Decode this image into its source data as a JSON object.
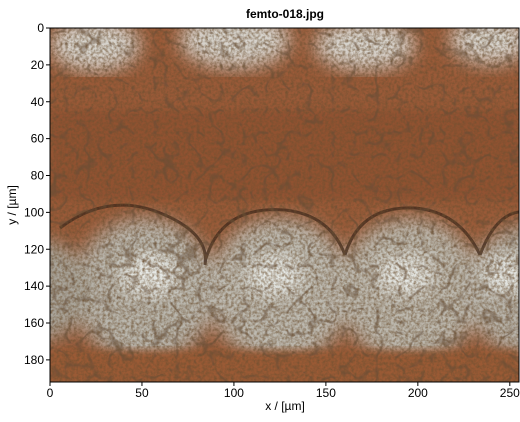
{
  "chart_data": {
    "type": "image",
    "title": "femto-018.jpg",
    "xlabel": "x / [µm]",
    "ylabel": "y / [µm]",
    "xlim": [
      0,
      255
    ],
    "ylim": [
      192,
      0
    ],
    "xticks": [
      0,
      50,
      100,
      150,
      200,
      250
    ],
    "yticks": [
      0,
      20,
      40,
      60,
      80,
      100,
      120,
      140,
      160,
      180
    ]
  }
}
